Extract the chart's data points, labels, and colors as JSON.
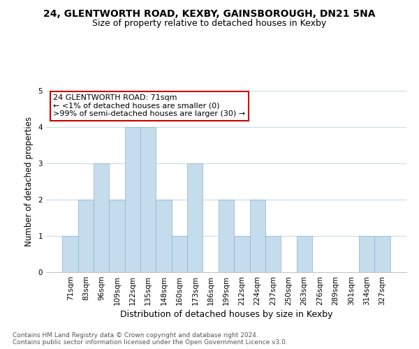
{
  "title": "24, GLENTWORTH ROAD, KEXBY, GAINSBOROUGH, DN21 5NA",
  "subtitle": "Size of property relative to detached houses in Kexby",
  "xlabel": "Distribution of detached houses by size in Kexby",
  "ylabel": "Number of detached properties",
  "categories": [
    "71sqm",
    "83sqm",
    "96sqm",
    "109sqm",
    "122sqm",
    "135sqm",
    "148sqm",
    "160sqm",
    "173sqm",
    "186sqm",
    "199sqm",
    "212sqm",
    "224sqm",
    "237sqm",
    "250sqm",
    "263sqm",
    "276sqm",
    "289sqm",
    "301sqm",
    "314sqm",
    "327sqm"
  ],
  "values": [
    1,
    2,
    3,
    2,
    4,
    4,
    2,
    1,
    3,
    0,
    2,
    1,
    2,
    1,
    0,
    1,
    0,
    0,
    0,
    1,
    1
  ],
  "bar_color": "#c5dced",
  "bar_edge_color": "#8ab4cc",
  "ylim": [
    0,
    5
  ],
  "yticks": [
    0,
    1,
    2,
    3,
    4,
    5
  ],
  "annotation_title": "24 GLENTWORTH ROAD: 71sqm",
  "annotation_line1": "← <1% of detached houses are smaller (0)",
  "annotation_line2": ">99% of semi-detached houses are larger (30) →",
  "annotation_box_color": "#ffffff",
  "annotation_border_color": "#cc0000",
  "footnote1": "Contains HM Land Registry data © Crown copyright and database right 2024.",
  "footnote2": "Contains public sector information licensed under the Open Government Licence v3.0.",
  "background_color": "#ffffff",
  "grid_color": "#c8dce8",
  "title_fontsize": 10,
  "subtitle_fontsize": 9,
  "xlabel_fontsize": 9,
  "ylabel_fontsize": 8.5,
  "tick_fontsize": 7.5,
  "footnote_fontsize": 6.5,
  "annotation_fontsize": 8
}
